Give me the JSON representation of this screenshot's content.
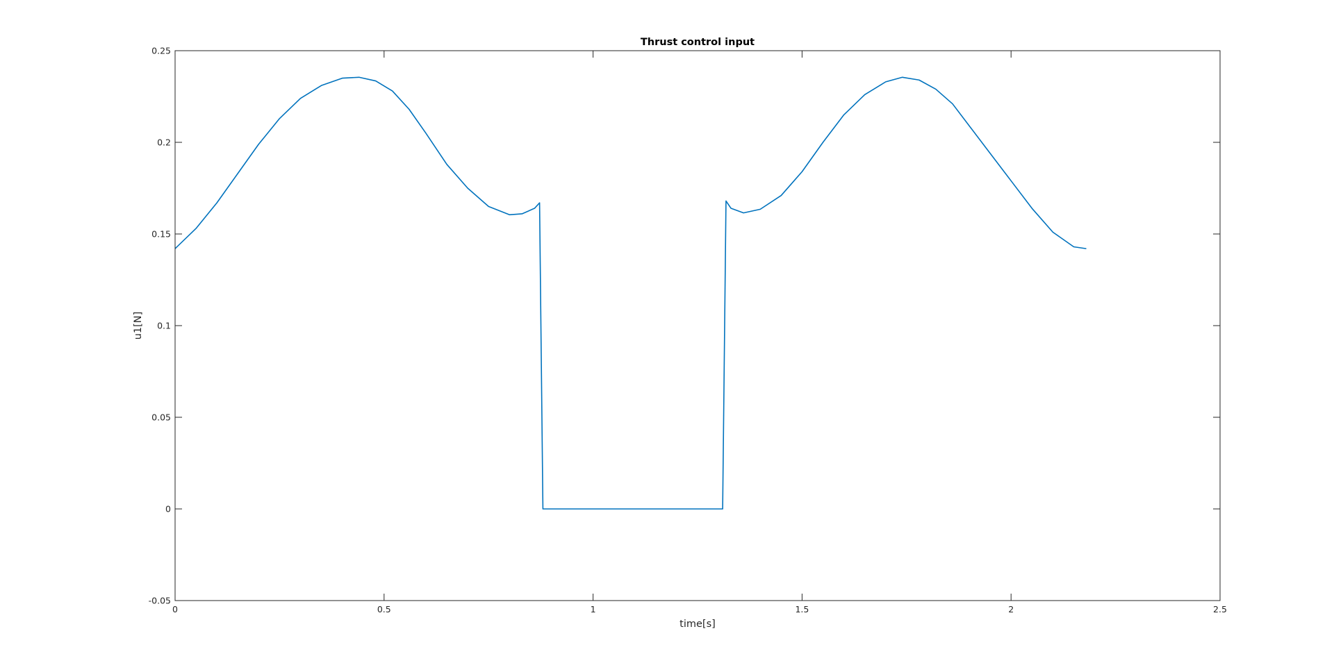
{
  "chart_data": {
    "type": "line",
    "title": "Thrust control input",
    "xlabel": "time[s]",
    "ylabel": "u1[N]",
    "xlim": [
      0,
      2.5
    ],
    "ylim": [
      -0.05,
      0.25
    ],
    "xticks": [
      0,
      0.5,
      1,
      1.5,
      2,
      2.5
    ],
    "xtick_labels": [
      "0",
      "0.5",
      "1",
      "1.5",
      "2",
      "2.5"
    ],
    "yticks": [
      -0.05,
      0,
      0.05,
      0.1,
      0.15,
      0.2,
      0.25
    ],
    "ytick_labels": [
      "-0.05",
      "0",
      "0.05",
      "0.1",
      "0.15",
      "0.2",
      "0.25"
    ],
    "grid": false,
    "legend": "none",
    "line_color": "#0072BD",
    "series": [
      {
        "x": [
          0,
          0.05,
          0.1,
          0.15,
          0.2,
          0.25,
          0.3,
          0.35,
          0.4,
          0.44,
          0.48,
          0.52,
          0.56,
          0.6,
          0.65,
          0.7,
          0.75,
          0.8,
          0.83,
          0.86,
          0.872,
          0.88,
          0.9,
          1.0,
          1.1,
          1.2,
          1.3,
          1.31,
          1.318,
          1.33,
          1.36,
          1.4,
          1.45,
          1.5,
          1.55,
          1.6,
          1.65,
          1.7,
          1.74,
          1.78,
          1.82,
          1.86,
          1.9,
          1.95,
          2.0,
          2.05,
          2.1,
          2.15,
          2.18
        ],
        "y": [
          0.142,
          0.153,
          0.167,
          0.183,
          0.199,
          0.213,
          0.224,
          0.231,
          0.235,
          0.2355,
          0.2335,
          0.228,
          0.218,
          0.205,
          0.188,
          0.175,
          0.165,
          0.1605,
          0.161,
          0.164,
          0.167,
          0.0,
          0.0,
          0.0,
          0.0,
          0.0,
          0.0,
          0.0,
          0.168,
          0.164,
          0.1615,
          0.1635,
          0.171,
          0.184,
          0.2,
          0.215,
          0.226,
          0.233,
          0.2355,
          0.234,
          0.229,
          0.221,
          0.209,
          0.194,
          0.179,
          0.164,
          0.151,
          0.143,
          0.142
        ]
      }
    ]
  }
}
